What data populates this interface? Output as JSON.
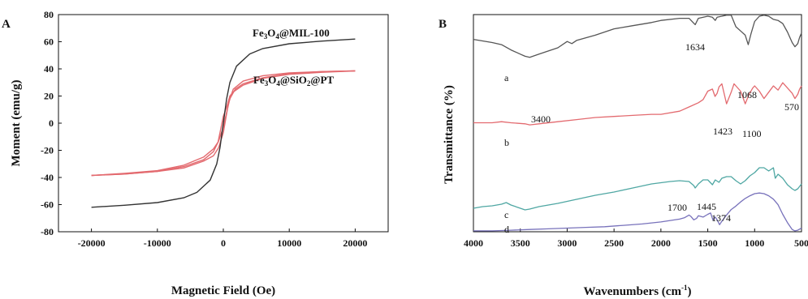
{
  "chart_data": [
    {
      "panel": "A",
      "type": "line",
      "xlabel": "Magnetic Field (Oe)",
      "ylabel": "Moment (emu/g)",
      "xlim": [
        -25000,
        25000
      ],
      "ylim": [
        -80,
        80
      ],
      "xticks": [
        -20000,
        -10000,
        0,
        10000,
        20000
      ],
      "yticks": [
        80,
        60,
        40,
        20,
        0,
        -20,
        -40,
        -60,
        -80
      ],
      "series": [
        {
          "name_parts": [
            "Fe",
            "3",
            "O",
            "4",
            "@MIL-100"
          ],
          "color": "#333333",
          "branches": [
            [
              [
                -20000,
                -62
              ],
              [
                -15000,
                -60.5
              ],
              [
                -10000,
                -58.5
              ],
              [
                -6000,
                -55
              ],
              [
                -4000,
                -51
              ],
              [
                -2000,
                -42
              ],
              [
                -1000,
                -30
              ],
              [
                -500,
                -18
              ],
              [
                0,
                0
              ],
              [
                500,
                18
              ],
              [
                1000,
                30
              ],
              [
                2000,
                42
              ],
              [
                4000,
                51
              ],
              [
                6000,
                55
              ],
              [
                10000,
                58.5
              ],
              [
                15000,
                60.5
              ],
              [
                20000,
                62
              ]
            ]
          ]
        },
        {
          "name_parts": [
            "Fe",
            "3",
            "O",
            "4",
            "@SiO",
            "2",
            "@PT"
          ],
          "color": "#e36a6f",
          "branches": [
            [
              [
                -20000,
                -38.5
              ],
              [
                -15000,
                -37.5
              ],
              [
                -10000,
                -35.5
              ],
              [
                -6000,
                -33
              ],
              [
                -3000,
                -28
              ],
              [
                -1500,
                -24
              ],
              [
                -700,
                -18
              ],
              [
                0,
                -7
              ],
              [
                400,
                4
              ],
              [
                800,
                15
              ],
              [
                1500,
                25
              ],
              [
                3000,
                31
              ],
              [
                6000,
                35
              ],
              [
                10000,
                37
              ],
              [
                15000,
                38
              ],
              [
                20000,
                38.5
              ]
            ],
            [
              [
                -20000,
                -38.5
              ],
              [
                -15000,
                -37.5
              ],
              [
                -10000,
                -35.5
              ],
              [
                -6000,
                -32
              ],
              [
                -3000,
                -27
              ],
              [
                -1500,
                -21
              ],
              [
                -700,
                -13
              ],
              [
                0,
                -3
              ],
              [
                500,
                8
              ],
              [
                1000,
                18
              ],
              [
                1800,
                25
              ],
              [
                3000,
                29
              ],
              [
                6000,
                33.5
              ],
              [
                10000,
                36.5
              ],
              [
                15000,
                38
              ],
              [
                20000,
                38.5
              ]
            ],
            [
              [
                -20000,
                -38.5
              ],
              [
                -15000,
                -37
              ],
              [
                -10000,
                -35
              ],
              [
                -6000,
                -31
              ],
              [
                -3000,
                -25
              ],
              [
                -1500,
                -19
              ],
              [
                -800,
                -14
              ],
              [
                0,
                5
              ],
              [
                500,
                12
              ],
              [
                1000,
                20
              ],
              [
                1500,
                23
              ],
              [
                3000,
                28
              ],
              [
                6000,
                33
              ],
              [
                10000,
                36
              ],
              [
                15000,
                37.5
              ],
              [
                20000,
                38.5
              ]
            ]
          ]
        }
      ]
    },
    {
      "panel": "B",
      "type": "line",
      "xlabel_parts": [
        "Wavenumbers (cm",
        "-1",
        ")"
      ],
      "ylabel": "Transmittance (%)",
      "xlim": [
        4000,
        500
      ],
      "xticks": [
        4000,
        3500,
        3000,
        2500,
        2000,
        1500,
        1000,
        500
      ],
      "grid": false,
      "series": [
        {
          "name": "a",
          "color": "#555555",
          "points": [
            [
              4000,
              78
            ],
            [
              3800,
              75
            ],
            [
              3700,
              73
            ],
            [
              3600,
              68
            ],
            [
              3500,
              64
            ],
            [
              3450,
              62
            ],
            [
              3400,
              61
            ],
            [
              3300,
              64
            ],
            [
              3200,
              67
            ],
            [
              3100,
              70
            ],
            [
              3000,
              76
            ],
            [
              2950,
              74
            ],
            [
              2900,
              77
            ],
            [
              2700,
              82
            ],
            [
              2500,
              88
            ],
            [
              2300,
              91
            ],
            [
              2100,
              94
            ],
            [
              2000,
              96
            ],
            [
              1800,
              98
            ],
            [
              1700,
              98
            ],
            [
              1634,
              92
            ],
            [
              1600,
              98
            ],
            [
              1500,
              100
            ],
            [
              1450,
              99
            ],
            [
              1420,
              96
            ],
            [
              1400,
              99
            ],
            [
              1300,
              101
            ],
            [
              1250,
              101
            ],
            [
              1200,
              90
            ],
            [
              1150,
              86
            ],
            [
              1100,
              82
            ],
            [
              1068,
              73
            ],
            [
              1040,
              83
            ],
            [
              1000,
              95
            ],
            [
              950,
              100
            ],
            [
              900,
              101
            ],
            [
              850,
              100
            ],
            [
              800,
              97
            ],
            [
              750,
              96
            ],
            [
              700,
              93
            ],
            [
              650,
              85
            ],
            [
              600,
              75
            ],
            [
              570,
              71
            ],
            [
              540,
              74
            ],
            [
              520,
              80
            ],
            [
              500,
              84
            ]
          ]
        },
        {
          "name": "b",
          "color": "#e36a6f",
          "points": [
            [
              4000,
              45
            ],
            [
              3800,
              45
            ],
            [
              3700,
              46
            ],
            [
              3600,
              45
            ],
            [
              3450,
              44
            ],
            [
              3400,
              43
            ],
            [
              3300,
              44
            ],
            [
              3100,
              46
            ],
            [
              2900,
              48
            ],
            [
              2700,
              50
            ],
            [
              2500,
              51
            ],
            [
              2300,
              52
            ],
            [
              2100,
              53
            ],
            [
              2000,
              53
            ],
            [
              1800,
              56
            ],
            [
              1700,
              60
            ],
            [
              1600,
              64
            ],
            [
              1550,
              67
            ],
            [
              1500,
              75
            ],
            [
              1450,
              77
            ],
            [
              1423,
              70
            ],
            [
              1400,
              73
            ],
            [
              1380,
              79
            ],
            [
              1350,
              82
            ],
            [
              1300,
              63
            ],
            [
              1250,
              74
            ],
            [
              1220,
              82
            ],
            [
              1200,
              80
            ],
            [
              1150,
              75
            ],
            [
              1100,
              63
            ],
            [
              1060,
              72
            ],
            [
              1020,
              78
            ],
            [
              1000,
              80
            ],
            [
              950,
              75
            ],
            [
              900,
              68
            ],
            [
              850,
              74
            ],
            [
              800,
              80
            ],
            [
              750,
              76
            ],
            [
              700,
              83
            ],
            [
              650,
              78
            ],
            [
              600,
              73
            ],
            [
              570,
              68
            ],
            [
              540,
              72
            ],
            [
              520,
              77
            ],
            [
              500,
              80
            ]
          ]
        },
        {
          "name": "c",
          "color": "#4fa7a3",
          "points": [
            [
              4000,
              18
            ],
            [
              3900,
              20
            ],
            [
              3800,
              21
            ],
            [
              3700,
              23
            ],
            [
              3650,
              25
            ],
            [
              3600,
              22
            ],
            [
              3500,
              18
            ],
            [
              3450,
              16
            ],
            [
              3400,
              17
            ],
            [
              3300,
              20
            ],
            [
              3100,
              24
            ],
            [
              2900,
              29
            ],
            [
              2700,
              34
            ],
            [
              2500,
              38
            ],
            [
              2300,
              43
            ],
            [
              2100,
              48
            ],
            [
              1900,
              51
            ],
            [
              1800,
              52
            ],
            [
              1700,
              51
            ],
            [
              1650,
              46
            ],
            [
              1634,
              43
            ],
            [
              1600,
              48
            ],
            [
              1550,
              53
            ],
            [
              1500,
              53
            ],
            [
              1450,
              47
            ],
            [
              1420,
              53
            ],
            [
              1380,
              50
            ],
            [
              1350,
              55
            ],
            [
              1300,
              57
            ],
            [
              1250,
              57
            ],
            [
              1200,
              52
            ],
            [
              1150,
              48
            ],
            [
              1100,
              52
            ],
            [
              1050,
              58
            ],
            [
              1000,
              62
            ],
            [
              950,
              68
            ],
            [
              900,
              68
            ],
            [
              850,
              64
            ],
            [
              800,
              68
            ],
            [
              780,
              55
            ],
            [
              750,
              60
            ],
            [
              700,
              55
            ],
            [
              650,
              47
            ],
            [
              600,
              42
            ],
            [
              570,
              40
            ],
            [
              540,
              42
            ],
            [
              520,
              45
            ],
            [
              500,
              48
            ]
          ]
        },
        {
          "name": "d",
          "color": "#7872bb",
          "points": [
            [
              4000,
              6
            ],
            [
              3800,
              6
            ],
            [
              3600,
              7
            ],
            [
              3400,
              8
            ],
            [
              3200,
              9
            ],
            [
              3000,
              10
            ],
            [
              2800,
              11
            ],
            [
              2600,
              12
            ],
            [
              2400,
              14
            ],
            [
              2200,
              16
            ],
            [
              2000,
              19
            ],
            [
              1900,
              21
            ],
            [
              1800,
              23
            ],
            [
              1750,
              25
            ],
            [
              1700,
              29
            ],
            [
              1680,
              27
            ],
            [
              1650,
              22
            ],
            [
              1620,
              24
            ],
            [
              1600,
              28
            ],
            [
              1550,
              26
            ],
            [
              1500,
              30
            ],
            [
              1470,
              32
            ],
            [
              1445,
              22
            ],
            [
              1420,
              26
            ],
            [
              1400,
              22
            ],
            [
              1374,
              15
            ],
            [
              1350,
              20
            ],
            [
              1300,
              29
            ],
            [
              1250,
              37
            ],
            [
              1200,
              42
            ],
            [
              1150,
              48
            ],
            [
              1100,
              53
            ],
            [
              1050,
              57
            ],
            [
              1000,
              60
            ],
            [
              950,
              61
            ],
            [
              900,
              60
            ],
            [
              850,
              57
            ],
            [
              800,
              52
            ],
            [
              750,
              44
            ],
            [
              700,
              30
            ],
            [
              650,
              18
            ],
            [
              600,
              8
            ],
            [
              570,
              6
            ],
            [
              540,
              7
            ],
            [
              500,
              10
            ]
          ]
        }
      ],
      "labels": {
        "a": "a",
        "b": "b",
        "c": "c",
        "d": "d",
        "p1634": "1634",
        "p1068": "1068",
        "p3400": "3400",
        "p570": "570",
        "p1423": "1423",
        "p1100": "1100",
        "p1700": "1700",
        "p1445": "1445",
        "p1374": "1374"
      }
    }
  ]
}
